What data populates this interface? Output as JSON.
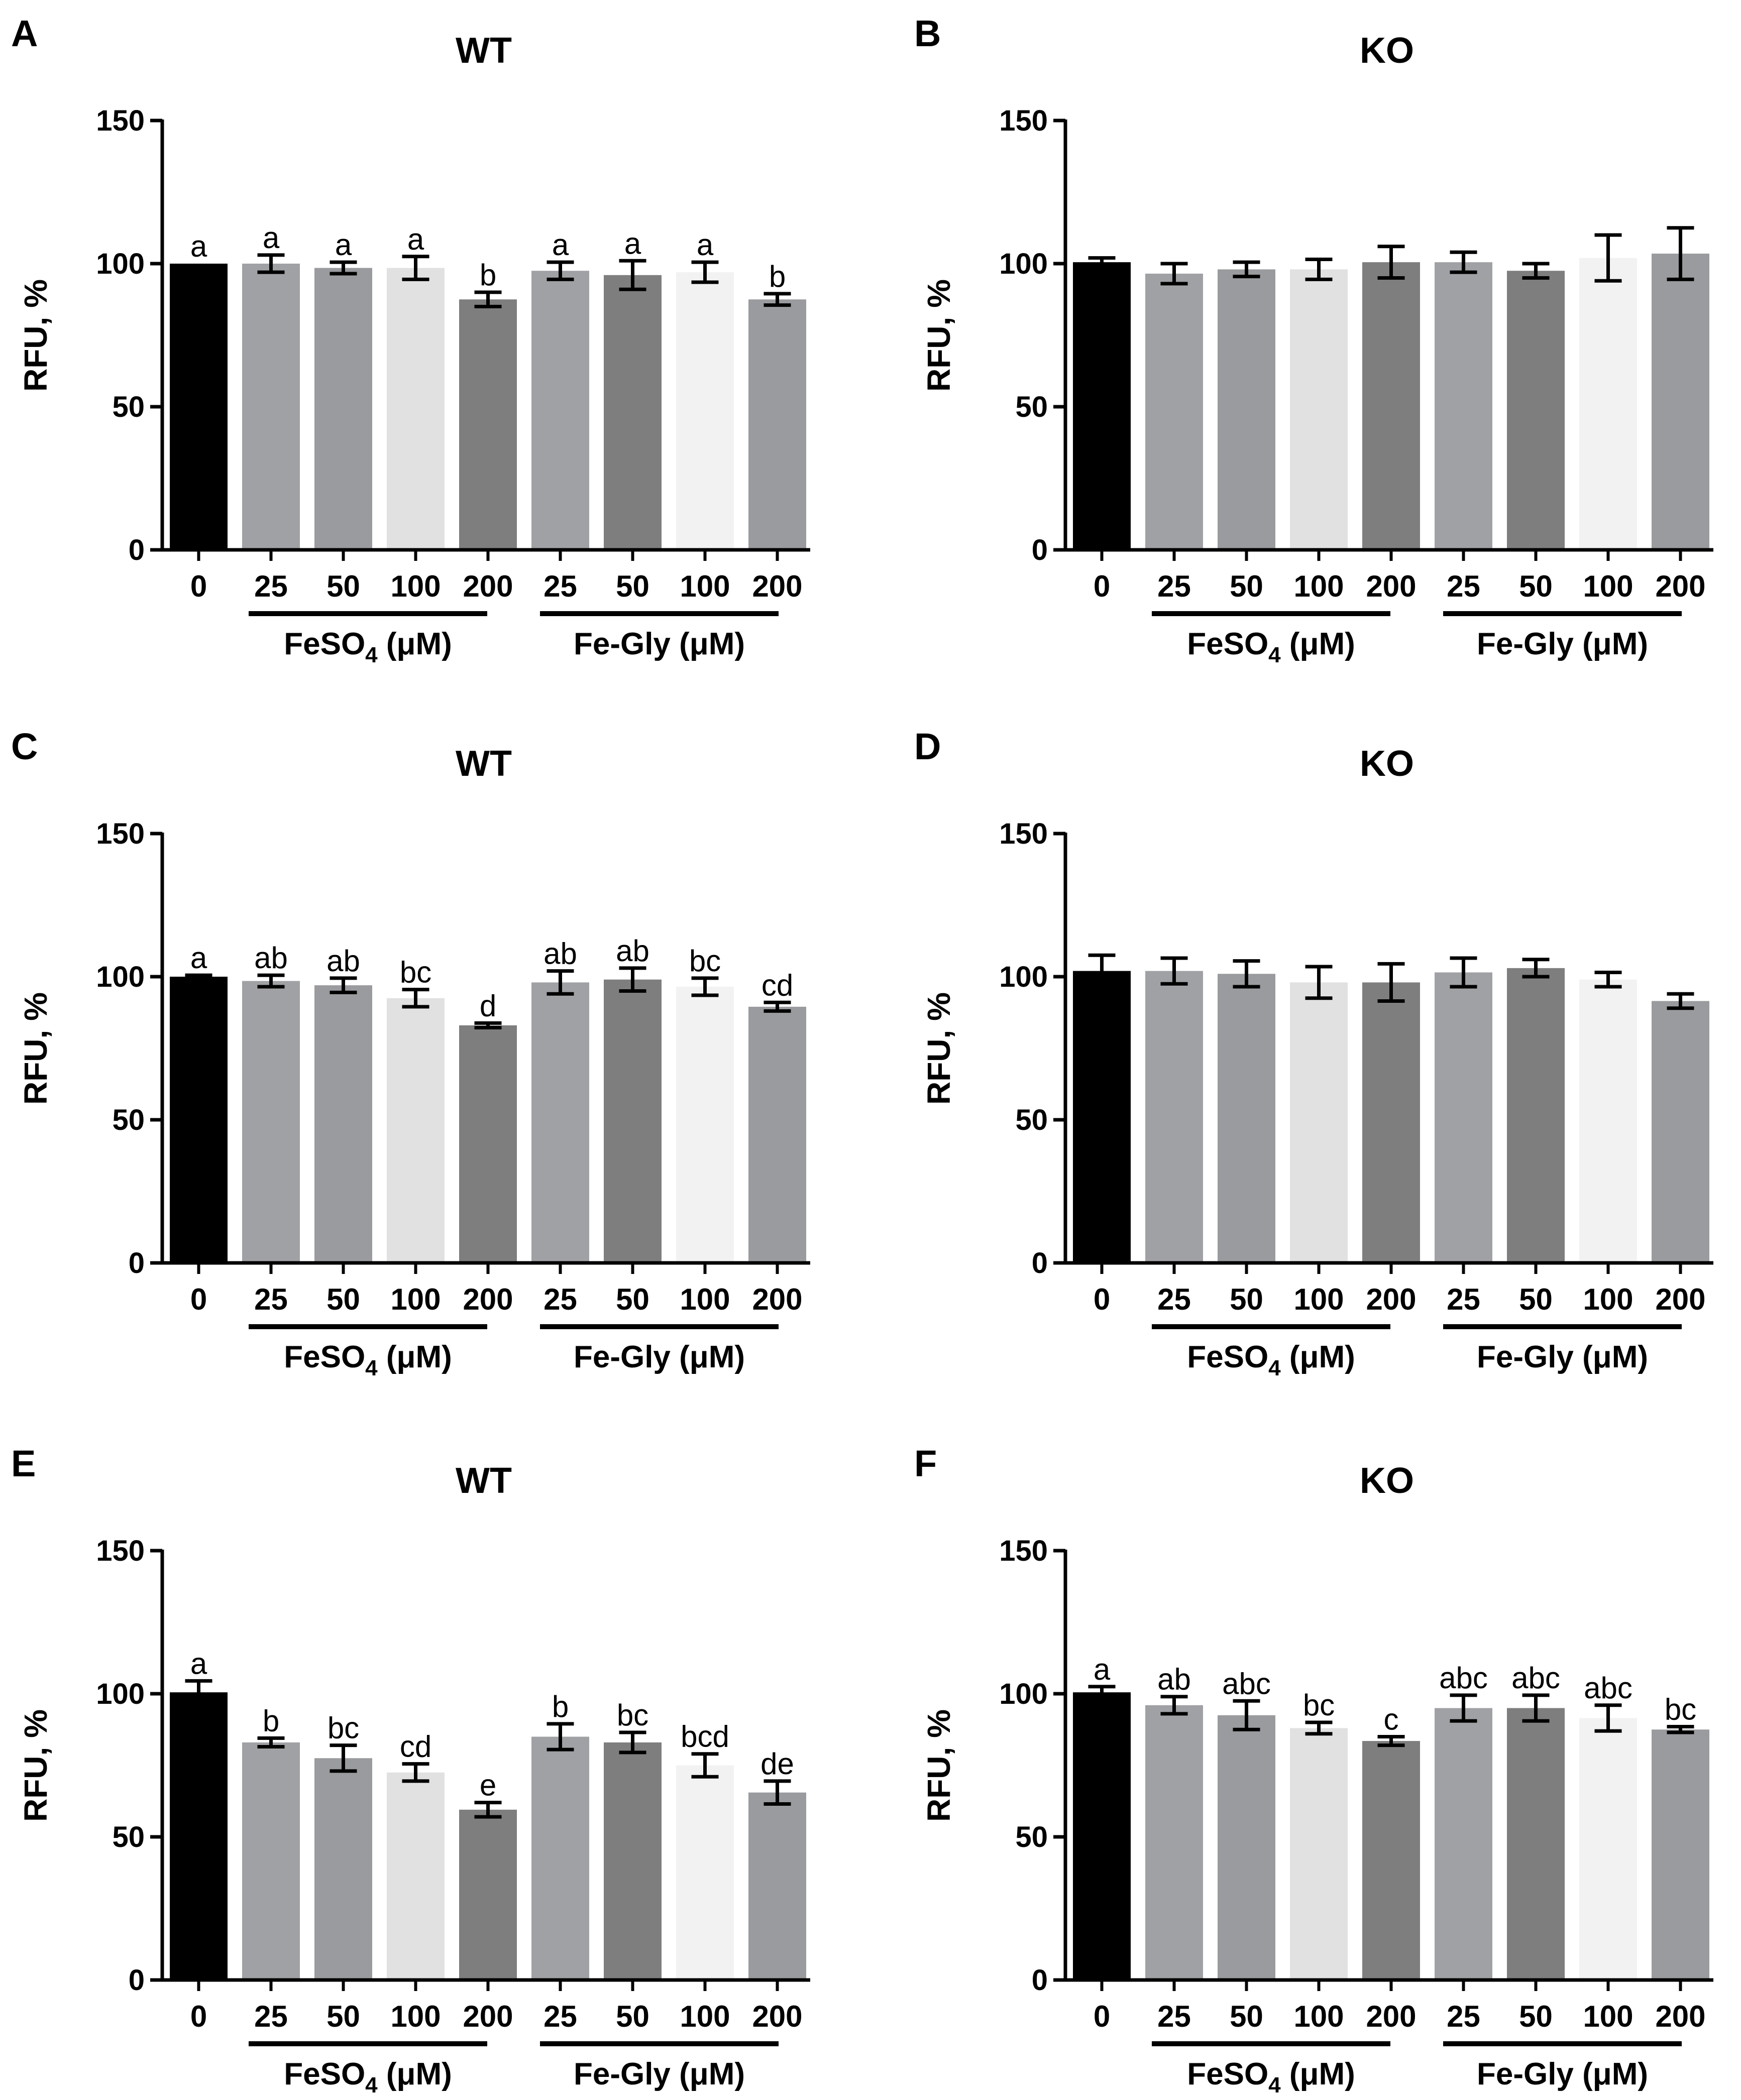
{
  "figure": {
    "category_labels": [
      "0",
      "25",
      "50",
      "100",
      "200",
      "25",
      "50",
      "100",
      "200"
    ],
    "group_labels": [
      {
        "text": "FeSO",
        "subscript": "4",
        "suffix": " (μM)"
      },
      {
        "text": "Fe-Gly (μM)",
        "subscript": "",
        "suffix": ""
      }
    ],
    "bar_colors": [
      "#000000",
      "#a0a1a5",
      "#9a9b9e",
      "#e1e1e1",
      "#7e7e7e",
      "#a0a1a5",
      "#7e7e7e",
      "#f2f2f2",
      "#9a9b9e"
    ],
    "error_bar_color": "#000000",
    "axis_color": "#000000"
  },
  "chart_data": [
    {
      "panel": "A",
      "title": "WT",
      "type": "bar",
      "xlabel": "",
      "ylabel": "RFU, %",
      "ylim": [
        0,
        150
      ],
      "yticks": [
        0,
        50,
        100,
        150
      ],
      "categories": [
        "0",
        "25",
        "50",
        "100",
        "200",
        "25",
        "50",
        "100",
        "200"
      ],
      "values": [
        100,
        100,
        98.5,
        98.5,
        87.5,
        97.5,
        96,
        97,
        87.5
      ],
      "errors": [
        0,
        3,
        2,
        4,
        2.5,
        3,
        5,
        3.5,
        2
      ],
      "annotations": [
        "a",
        "a",
        "a",
        "a",
        "b",
        "a",
        "a",
        "a",
        "b"
      ]
    },
    {
      "panel": "B",
      "title": "KO",
      "type": "bar",
      "xlabel": "",
      "ylabel": "RFU, %",
      "ylim": [
        0,
        150
      ],
      "yticks": [
        0,
        50,
        100,
        150
      ],
      "categories": [
        "0",
        "25",
        "50",
        "100",
        "200",
        "25",
        "50",
        "100",
        "200"
      ],
      "values": [
        100.5,
        96.5,
        98,
        98,
        100.5,
        100.5,
        97.5,
        102,
        103.5
      ],
      "errors": [
        1.5,
        3.5,
        2.5,
        3.5,
        5.5,
        3.5,
        2.5,
        8,
        9
      ],
      "annotations": [
        "",
        "",
        "",
        "",
        "",
        "",
        "",
        "",
        ""
      ]
    },
    {
      "panel": "C",
      "title": "WT",
      "type": "bar",
      "xlabel": "",
      "ylabel": "RFU, %",
      "ylim": [
        0,
        150
      ],
      "yticks": [
        0,
        50,
        100,
        150
      ],
      "categories": [
        "0",
        "25",
        "50",
        "100",
        "200",
        "25",
        "50",
        "100",
        "200"
      ],
      "values": [
        100,
        98.5,
        97,
        92.5,
        83,
        98,
        99,
        96.5,
        89.5
      ],
      "errors": [
        0.5,
        2,
        2.5,
        3,
        0.8,
        4,
        4,
        3,
        1.5
      ],
      "annotations": [
        "a",
        "ab",
        "ab",
        "bc",
        "d",
        "ab",
        "ab",
        "bc",
        "cd"
      ]
    },
    {
      "panel": "D",
      "title": "KO",
      "type": "bar",
      "xlabel": "",
      "ylabel": "RFU, %",
      "ylim": [
        0,
        150
      ],
      "yticks": [
        0,
        50,
        100,
        150
      ],
      "categories": [
        "0",
        "25",
        "50",
        "100",
        "200",
        "25",
        "50",
        "100",
        "200"
      ],
      "values": [
        102,
        102,
        101,
        98,
        98,
        101.5,
        103,
        99,
        91.5
      ],
      "errors": [
        5.5,
        4.5,
        4.5,
        5.5,
        6.5,
        5,
        3,
        2.5,
        2.5
      ],
      "annotations": [
        "",
        "",
        "",
        "",
        "",
        "",
        "",
        "",
        ""
      ]
    },
    {
      "panel": "E",
      "title": "WT",
      "type": "bar",
      "xlabel": "",
      "ylabel": "RFU, %",
      "ylim": [
        0,
        150
      ],
      "yticks": [
        0,
        50,
        100,
        150
      ],
      "categories": [
        "0",
        "25",
        "50",
        "100",
        "200",
        "25",
        "50",
        "100",
        "200"
      ],
      "values": [
        100.5,
        83,
        77.5,
        72.5,
        59.5,
        85,
        83,
        75,
        65.5
      ],
      "errors": [
        4,
        1.5,
        4.5,
        3,
        2.5,
        4.5,
        3.5,
        4,
        4
      ],
      "annotations": [
        "a",
        "b",
        "bc",
        "cd",
        "e",
        "b",
        "bc",
        "bcd",
        "de"
      ]
    },
    {
      "panel": "F",
      "title": "KO",
      "type": "bar",
      "xlabel": "",
      "ylabel": "RFU, %",
      "ylim": [
        0,
        150
      ],
      "yticks": [
        0,
        50,
        100,
        150
      ],
      "categories": [
        "0",
        "25",
        "50",
        "100",
        "200",
        "25",
        "50",
        "100",
        "200"
      ],
      "values": [
        100.5,
        96,
        92.5,
        88,
        83.5,
        95,
        95,
        91.5,
        87.5
      ],
      "errors": [
        2,
        3,
        5,
        2,
        1.5,
        4.5,
        4.5,
        4.5,
        1
      ],
      "annotations": [
        "a",
        "ab",
        "abc",
        "bc",
        "c",
        "abc",
        "abc",
        "abc",
        "bc"
      ]
    }
  ]
}
